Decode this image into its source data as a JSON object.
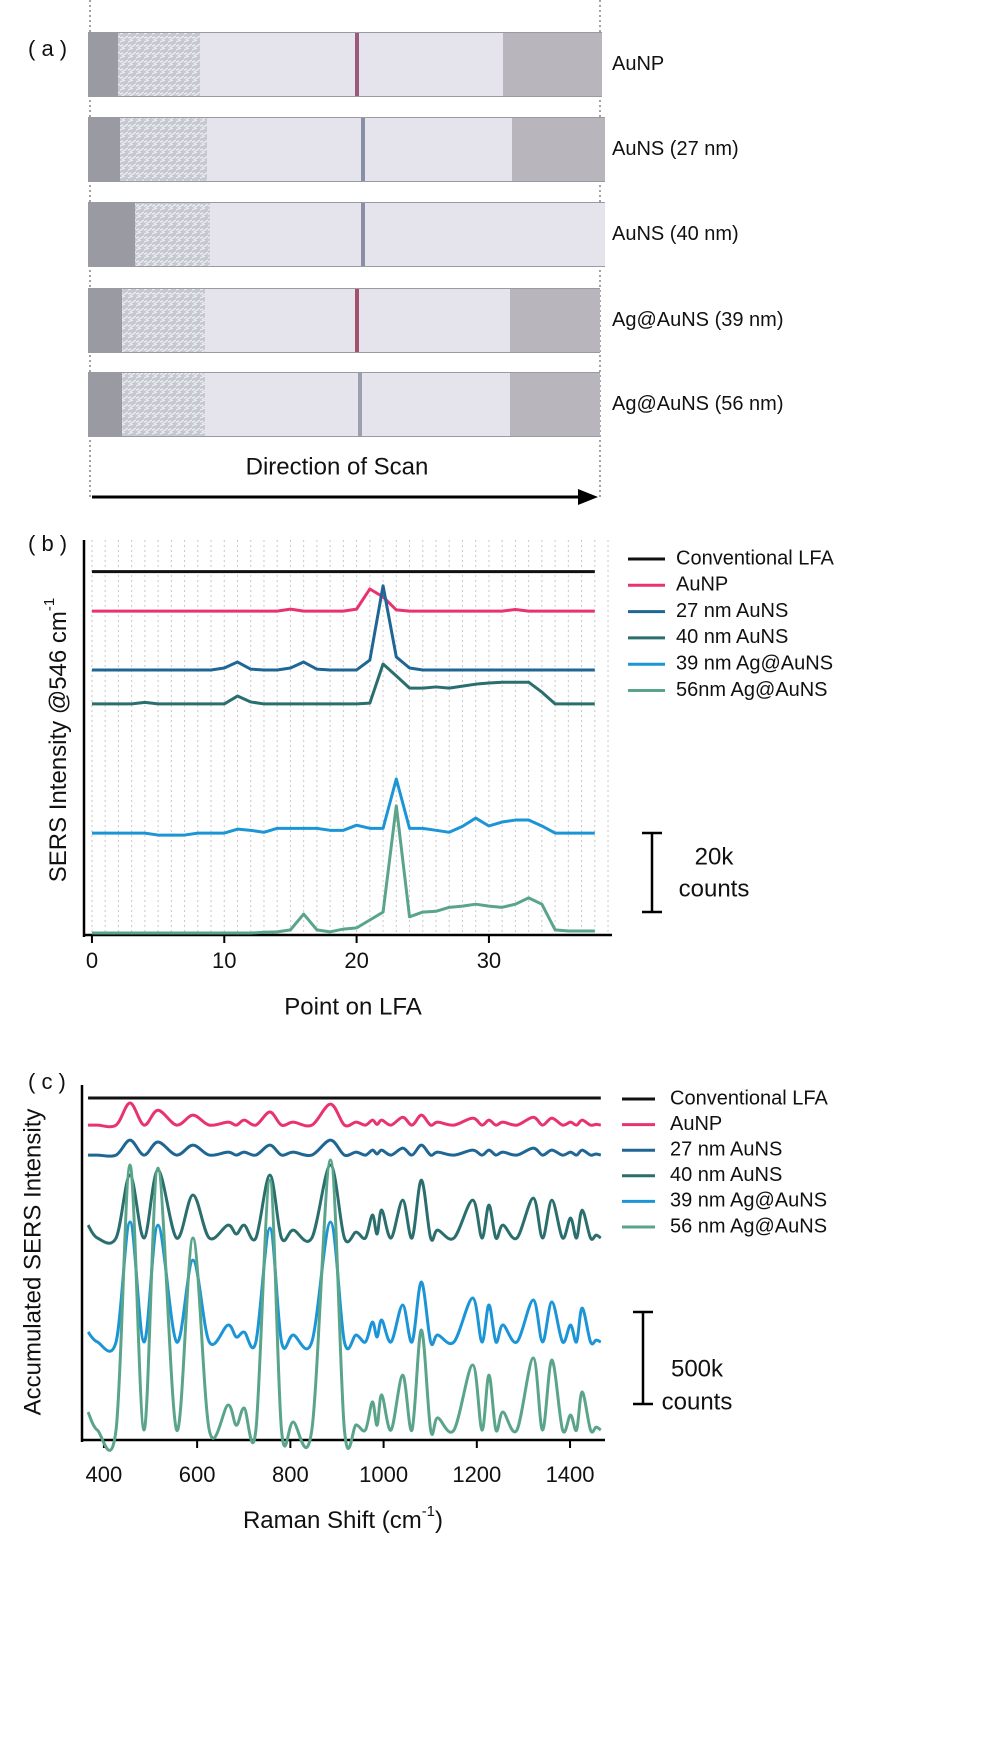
{
  "panel_a": {
    "label": "( a )",
    "strip_labels": [
      "AuNP",
      "AuNS (27 nm)",
      "AuNS (40 nm)",
      "Ag@AuNS (39 nm)",
      "Ag@AuNS (56 nm)"
    ],
    "arrow_label": "Direction of Scan"
  },
  "chart_data": [
    {
      "type": "line",
      "panel_label": "( b )",
      "ylabel": "SERS  Intensity @546 cm",
      "ylabel_sup": "-1",
      "xlabel": "Point on LFA",
      "x": [
        0,
        1,
        2,
        3,
        4,
        5,
        6,
        7,
        8,
        9,
        10,
        11,
        12,
        13,
        14,
        15,
        16,
        17,
        18,
        19,
        20,
        21,
        22,
        23,
        24,
        25,
        26,
        27,
        28,
        29,
        30,
        31,
        32,
        33,
        34,
        35,
        36,
        37,
        38
      ],
      "xlim": [
        -0.6,
        39.3
      ],
      "xticks": [
        0,
        10,
        20,
        30
      ],
      "ylim": [
        0,
        100000
      ],
      "grid": "x",
      "grid_step": 1,
      "scale_bar": {
        "value": 20000,
        "label": "20k",
        "unit": "counts"
      },
      "series": [
        {
          "name": "Conventional LFA",
          "color": "#111111",
          "values": [
            92000,
            92000,
            92000,
            92000,
            92000,
            92000,
            92000,
            92000,
            92000,
            92000,
            92000,
            92000,
            92000,
            92000,
            92000,
            92000,
            92000,
            92000,
            92000,
            92000,
            92000,
            92000,
            92000,
            92000,
            92000,
            92000,
            92000,
            92000,
            92000,
            92000,
            92000,
            92000,
            92000,
            92000,
            92000,
            92000,
            92000,
            92000,
            92000
          ]
        },
        {
          "name": "AuNP",
          "color": "#e8336f",
          "values": [
            82000,
            82000,
            82000,
            82000,
            82000,
            82000,
            82000,
            82000,
            82000,
            82000,
            82000,
            82000,
            82000,
            82000,
            82000,
            82500,
            82000,
            82000,
            82000,
            82000,
            82500,
            87600,
            85600,
            82300,
            82000,
            82000,
            82000,
            82000,
            82000,
            82000,
            82000,
            82000,
            82400,
            82000,
            82000,
            82000,
            82000,
            82000,
            82000
          ]
        },
        {
          "name": "27 nm AuNS",
          "color": "#1f6694",
          "values": [
            67100,
            67100,
            67100,
            67100,
            67100,
            67100,
            67100,
            67100,
            67100,
            67100,
            67600,
            69100,
            67300,
            67100,
            67100,
            67600,
            69100,
            67300,
            67100,
            67100,
            67100,
            69600,
            88400,
            70400,
            67600,
            67100,
            67100,
            67100,
            67100,
            67100,
            67100,
            67100,
            67100,
            67100,
            67100,
            67100,
            67100,
            67100,
            67100
          ]
        },
        {
          "name": "40 nm AuNS",
          "color": "#2a6e6e",
          "values": [
            58500,
            58500,
            58500,
            58500,
            58900,
            58500,
            58500,
            58500,
            58500,
            58500,
            58500,
            60500,
            59000,
            58500,
            58500,
            58500,
            58500,
            58500,
            58500,
            58500,
            58500,
            58700,
            68600,
            65600,
            62500,
            62500,
            62800,
            62500,
            63000,
            63500,
            63800,
            64000,
            64000,
            64000,
            61500,
            58500,
            58500,
            58500,
            58500
          ]
        },
        {
          "name": "39 nm Ag@AuNS",
          "color": "#1b95d6",
          "values": [
            25800,
            25800,
            25800,
            25800,
            25800,
            25300,
            25300,
            25300,
            25800,
            25800,
            25800,
            26800,
            26500,
            26000,
            27000,
            27000,
            27000,
            27000,
            26500,
            26500,
            27800,
            27000,
            27000,
            39500,
            27000,
            27000,
            26500,
            26000,
            27500,
            29600,
            27600,
            28600,
            29100,
            29100,
            27600,
            25800,
            25800,
            25800,
            25800
          ]
        },
        {
          "name": "56nm Ag@AuNS",
          "color": "#5aa58a",
          "values": [
            500,
            500,
            500,
            500,
            500,
            500,
            500,
            500,
            500,
            500,
            500,
            500,
            500,
            700,
            800,
            1300,
            5300,
            1300,
            800,
            1500,
            1800,
            3800,
            5800,
            32700,
            4600,
            5800,
            6000,
            7000,
            7300,
            7800,
            7300,
            7000,
            7800,
            9400,
            7800,
            1300,
            1000,
            1000,
            1000
          ]
        }
      ]
    },
    {
      "type": "line",
      "panel_label": "( c )",
      "ylabel": "Accumulated SERS Intensity",
      "xlabel": "Raman Shift (cm",
      "xlabel_sup": "-1",
      "xlabel_end": ")",
      "x": [
        366,
        386,
        426,
        456,
        486,
        516,
        556,
        591,
        626,
        666,
        684,
        701,
        726,
        756,
        781,
        806,
        846,
        886,
        916,
        941,
        961,
        976,
        986,
        996,
        1016,
        1041,
        1061,
        1081,
        1101,
        1116,
        1151,
        1191,
        1211,
        1226,
        1241,
        1256,
        1286,
        1321,
        1341,
        1361,
        1384,
        1401,
        1414,
        1426,
        1444,
        1456,
        1466
      ],
      "xlim": [
        353,
        1475
      ],
      "xticks": [
        400,
        600,
        800,
        1000,
        1200,
        1400
      ],
      "ylim": [
        0,
        1930000
      ],
      "scale_bar": {
        "value": 500000,
        "label": "500k",
        "unit": "counts"
      },
      "series": [
        {
          "name": "Conventional LFA",
          "color": "#111111",
          "values": [
            1859000,
            1859000,
            1859000,
            1859000,
            1859000,
            1859000,
            1859000,
            1859000,
            1859000,
            1859000,
            1859000,
            1859000,
            1859000,
            1859000,
            1859000,
            1859000,
            1859000,
            1859000,
            1859000,
            1859000,
            1859000,
            1859000,
            1859000,
            1859000,
            1859000,
            1859000,
            1859000,
            1859000,
            1859000,
            1859000,
            1859000,
            1859000,
            1859000,
            1859000,
            1859000,
            1859000,
            1859000,
            1859000,
            1859000,
            1859000,
            1859000,
            1859000,
            1859000,
            1859000,
            1859000,
            1859000,
            1859000
          ]
        },
        {
          "name": "AuNP",
          "color": "#e8336f",
          "values": [
            1712000,
            1712000,
            1712000,
            1832000,
            1712000,
            1793000,
            1712000,
            1766000,
            1712000,
            1728000,
            1712000,
            1739000,
            1712000,
            1783000,
            1712000,
            1728000,
            1712000,
            1826000,
            1712000,
            1728000,
            1712000,
            1739000,
            1716000,
            1739000,
            1712000,
            1755000,
            1712000,
            1766000,
            1712000,
            1728000,
            1712000,
            1750000,
            1712000,
            1739000,
            1712000,
            1728000,
            1712000,
            1755000,
            1712000,
            1750000,
            1712000,
            1728000,
            1712000,
            1739000,
            1712000,
            1716000,
            1712000
          ]
        },
        {
          "name": "27 nm AuNS",
          "color": "#1f6694",
          "values": [
            1549000,
            1549000,
            1549000,
            1630000,
            1549000,
            1620000,
            1549000,
            1603000,
            1549000,
            1565000,
            1549000,
            1565000,
            1549000,
            1603000,
            1549000,
            1565000,
            1549000,
            1630000,
            1549000,
            1565000,
            1549000,
            1576000,
            1555000,
            1576000,
            1549000,
            1587000,
            1549000,
            1603000,
            1549000,
            1565000,
            1549000,
            1576000,
            1549000,
            1576000,
            1549000,
            1565000,
            1549000,
            1587000,
            1549000,
            1576000,
            1549000,
            1565000,
            1549000,
            1576000,
            1549000,
            1555000,
            1549000
          ]
        },
        {
          "name": "40 nm AuNS",
          "color": "#2a6e6e",
          "values": [
            1168000,
            1098000,
            1098000,
            1440000,
            1098000,
            1467000,
            1098000,
            1332000,
            1098000,
            1168000,
            1120000,
            1168000,
            1098000,
            1440000,
            1098000,
            1141000,
            1098000,
            1495000,
            1098000,
            1130000,
            1098000,
            1223000,
            1120000,
            1250000,
            1098000,
            1304000,
            1098000,
            1413000,
            1098000,
            1141000,
            1098000,
            1304000,
            1098000,
            1277000,
            1098000,
            1168000,
            1098000,
            1315000,
            1098000,
            1304000,
            1098000,
            1207000,
            1098000,
            1250000,
            1098000,
            1114000,
            1098000
          ]
        },
        {
          "name": "39 nm Ag@AuNS",
          "color": "#1b95d6",
          "values": [
            587000,
            533000,
            533000,
            1185000,
            533000,
            1168000,
            533000,
            978000,
            533000,
            625000,
            560000,
            587000,
            533000,
            1152000,
            533000,
            571000,
            533000,
            1185000,
            533000,
            571000,
            533000,
            641000,
            560000,
            652000,
            533000,
            734000,
            533000,
            859000,
            533000,
            571000,
            533000,
            772000,
            533000,
            734000,
            533000,
            625000,
            533000,
            761000,
            533000,
            750000,
            533000,
            625000,
            533000,
            717000,
            533000,
            543000,
            533000
          ]
        },
        {
          "name": "56 nm Ag@AuNS",
          "color": "#5aa58a",
          "values": [
            152000,
            54000,
            54000,
            1495000,
            54000,
            1478000,
            54000,
            1098000,
            54000,
            190000,
            80000,
            174000,
            54000,
            1413000,
            54000,
            98000,
            54000,
            1522000,
            54000,
            82000,
            54000,
            207000,
            80000,
            245000,
            54000,
            353000,
            54000,
            598000,
            54000,
            120000,
            54000,
            408000,
            54000,
            353000,
            54000,
            152000,
            54000,
            446000,
            54000,
            435000,
            54000,
            136000,
            54000,
            261000,
            54000,
            70000,
            54000
          ]
        }
      ]
    }
  ]
}
